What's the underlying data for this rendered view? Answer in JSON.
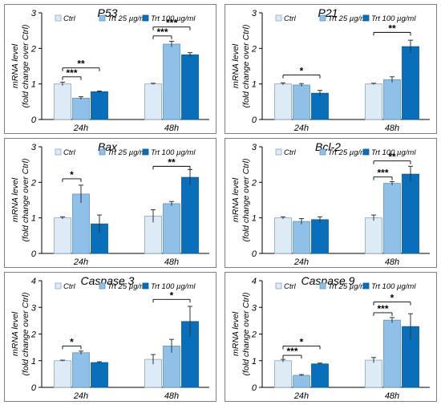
{
  "legend_labels": [
    "Ctrl",
    "Trt 25 µg/ml",
    "Trt 100 µg/ml"
  ],
  "ylabel_line1": "mRNA level",
  "ylabel_line2": "(fold change over Ctrl)",
  "colors": {
    "ctrl": "#ddebf7",
    "trt25": "#8fc1e8",
    "trt100": "#0a6fba",
    "border": "#7f7f7f"
  },
  "chart_data": [
    {
      "type": "bar",
      "title": "P53",
      "categories": [
        "24h",
        "48h"
      ],
      "ylim": [
        0,
        3
      ],
      "yticks": [
        0,
        1,
        2,
        3
      ],
      "series": [
        {
          "name": "Ctrl",
          "values": [
            1.0,
            1.0
          ],
          "errors": [
            0.05,
            0.02
          ]
        },
        {
          "name": "Trt 25 µg/ml",
          "values": [
            0.6,
            2.12
          ],
          "errors": [
            0.04,
            0.08
          ]
        },
        {
          "name": "Trt 100 µg/ml",
          "values": [
            0.78,
            1.82
          ],
          "errors": [
            0.02,
            0.06
          ]
        }
      ],
      "significance": [
        {
          "cat": 0,
          "from": 0,
          "to": 1,
          "y": 1.2,
          "label": "***"
        },
        {
          "cat": 0,
          "from": 0,
          "to": 2,
          "y": 1.45,
          "label": "**"
        },
        {
          "cat": 1,
          "from": 0,
          "to": 1,
          "y": 2.35,
          "label": "***"
        },
        {
          "cat": 1,
          "from": 0,
          "to": 2,
          "y": 2.6,
          "label": "***"
        }
      ]
    },
    {
      "type": "bar",
      "title": "P21",
      "categories": [
        "24h",
        "48h"
      ],
      "ylim": [
        0,
        3
      ],
      "yticks": [
        0,
        1,
        2,
        3
      ],
      "series": [
        {
          "name": "Ctrl",
          "values": [
            1.0,
            1.0
          ],
          "errors": [
            0.03,
            0.02
          ]
        },
        {
          "name": "Trt 25 µg/ml",
          "values": [
            0.97,
            1.12
          ],
          "errors": [
            0.04,
            0.08
          ]
        },
        {
          "name": "Trt 100 µg/ml",
          "values": [
            0.74,
            2.05
          ],
          "errors": [
            0.08,
            0.18
          ]
        }
      ],
      "significance": [
        {
          "cat": 0,
          "from": 0,
          "to": 2,
          "y": 1.25,
          "label": "*"
        },
        {
          "cat": 1,
          "from": 0,
          "to": 2,
          "y": 2.45,
          "label": "**"
        }
      ]
    },
    {
      "type": "bar",
      "title": "Bax",
      "categories": [
        "24h",
        "48h"
      ],
      "ylim": [
        0,
        3
      ],
      "yticks": [
        0,
        1,
        2,
        3
      ],
      "series": [
        {
          "name": "Ctrl",
          "values": [
            1.0,
            1.05
          ],
          "errors": [
            0.03,
            0.18
          ]
        },
        {
          "name": "Trt 25 µg/ml",
          "values": [
            1.67,
            1.4
          ],
          "errors": [
            0.25,
            0.06
          ]
        },
        {
          "name": "Trt 100 µg/ml",
          "values": [
            0.83,
            2.14
          ],
          "errors": [
            0.25,
            0.22
          ]
        }
      ],
      "significance": [
        {
          "cat": 0,
          "from": 0,
          "to": 1,
          "y": 2.1,
          "label": "*"
        },
        {
          "cat": 1,
          "from": 0,
          "to": 2,
          "y": 2.45,
          "label": "**"
        }
      ]
    },
    {
      "type": "bar",
      "title": "Bcl-2",
      "categories": [
        "24h",
        "48h"
      ],
      "ylim": [
        0,
        3
      ],
      "yticks": [
        0,
        1,
        2,
        3
      ],
      "series": [
        {
          "name": "Ctrl",
          "values": [
            1.0,
            1.0
          ],
          "errors": [
            0.03,
            0.08
          ]
        },
        {
          "name": "Trt 25 µg/ml",
          "values": [
            0.9,
            1.97
          ],
          "errors": [
            0.08,
            0.05
          ]
        },
        {
          "name": "Trt 100 µg/ml",
          "values": [
            0.95,
            2.23
          ],
          "errors": [
            0.08,
            0.22
          ]
        }
      ],
      "significance": [
        {
          "cat": 1,
          "from": 0,
          "to": 1,
          "y": 2.15,
          "label": "***"
        },
        {
          "cat": 1,
          "from": 0,
          "to": 2,
          "y": 2.6,
          "label": "**"
        }
      ]
    },
    {
      "type": "bar",
      "title": "Caspase 3",
      "categories": [
        "24h",
        "48h"
      ],
      "ylim": [
        0,
        4
      ],
      "yticks": [
        0,
        1,
        2,
        3,
        4
      ],
      "series": [
        {
          "name": "Ctrl",
          "values": [
            1.0,
            1.05
          ],
          "errors": [
            0.02,
            0.18
          ]
        },
        {
          "name": "Trt 25 µg/ml",
          "values": [
            1.3,
            1.55
          ],
          "errors": [
            0.06,
            0.25
          ]
        },
        {
          "name": "Trt 100 µg/ml",
          "values": [
            0.93,
            2.47
          ],
          "errors": [
            0.03,
            0.57
          ]
        }
      ],
      "significance": [
        {
          "cat": 0,
          "from": 0,
          "to": 1,
          "y": 1.55,
          "label": "*"
        },
        {
          "cat": 1,
          "from": 0,
          "to": 2,
          "y": 3.3,
          "label": "*"
        }
      ]
    },
    {
      "type": "bar",
      "title": "Caspase 9",
      "categories": [
        "24h",
        "48h"
      ],
      "ylim": [
        0,
        4
      ],
      "yticks": [
        0,
        1,
        2,
        3,
        4
      ],
      "series": [
        {
          "name": "Ctrl",
          "values": [
            1.0,
            1.02
          ],
          "errors": [
            0.05,
            0.1
          ]
        },
        {
          "name": "Trt 25 µg/ml",
          "values": [
            0.45,
            2.52
          ],
          "errors": [
            0.03,
            0.1
          ]
        },
        {
          "name": "Trt 100 µg/ml",
          "values": [
            0.88,
            2.28
          ],
          "errors": [
            0.03,
            0.48
          ]
        }
      ],
      "significance": [
        {
          "cat": 0,
          "from": 0,
          "to": 1,
          "y": 1.2,
          "label": "***"
        },
        {
          "cat": 0,
          "from": 0,
          "to": 2,
          "y": 1.55,
          "label": "*"
        },
        {
          "cat": 1,
          "from": 0,
          "to": 1,
          "y": 2.8,
          "label": "***"
        },
        {
          "cat": 1,
          "from": 0,
          "to": 2,
          "y": 3.2,
          "label": "*"
        }
      ]
    }
  ]
}
